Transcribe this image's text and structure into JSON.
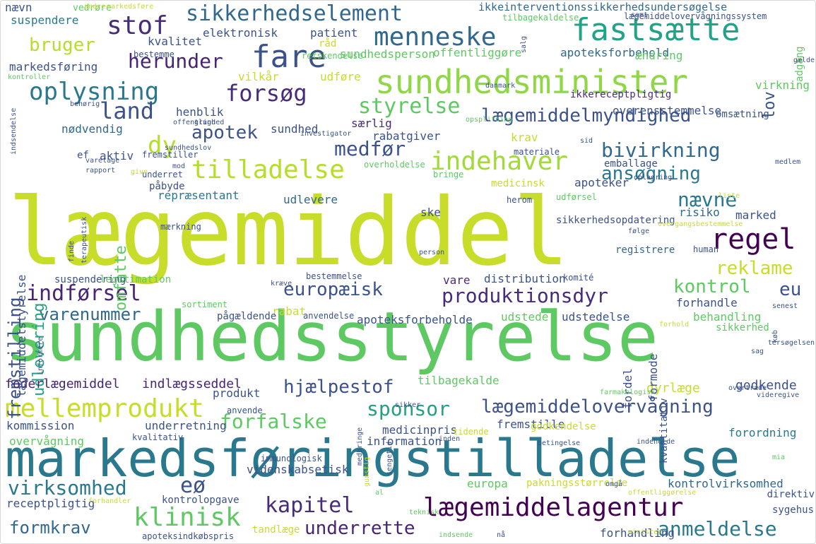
{
  "palette": {
    "yellow": "#c8dc2a",
    "lime": "#8fd744",
    "green": "#5ec962",
    "teal": "#25a085",
    "cyan": "#1f9a8a",
    "blue": "#2a788e",
    "indigo": "#31688e",
    "slate": "#3b528b",
    "violet": "#472c7a",
    "purple": "#440154"
  },
  "words": [
    {
      "text": "lægemiddel",
      "color": "#c8dc2a"
    },
    {
      "text": "sundhedsstyrelse",
      "color": "#5ec962"
    },
    {
      "text": "markedsføringstilladelse",
      "color": "#2a788e"
    },
    {
      "text": "sundhedsminister",
      "color": "#8fd744"
    },
    {
      "text": "fastsætte",
      "color": "#20a386"
    },
    {
      "text": "fare",
      "color": "#3b528b"
    },
    {
      "text": "menneske",
      "color": "#31688e"
    },
    {
      "text": "sikkerhedselement",
      "color": "#31688e"
    },
    {
      "text": "stof",
      "color": "#472c7a"
    },
    {
      "text": "oplysning",
      "color": "#2a788e"
    },
    {
      "text": "forsøg",
      "color": "#472c7a"
    },
    {
      "text": "tilladelse",
      "color": "#b5de2b"
    },
    {
      "text": "indehaver",
      "color": "#a2da37"
    },
    {
      "text": "lægemiddelmyndighed",
      "color": "#3b528b"
    },
    {
      "text": "styrelse",
      "color": "#5ec962"
    },
    {
      "text": "apotek",
      "color": "#3b528b"
    },
    {
      "text": "land",
      "color": "#3b528b"
    },
    {
      "text": "herunder",
      "color": "#482475"
    },
    {
      "text": "bruger",
      "color": "#b5de2b"
    },
    {
      "text": "medfør",
      "color": "#3b528b"
    },
    {
      "text": "bivirkning",
      "color": "#31688e"
    },
    {
      "text": "ansøgning",
      "color": "#2a788e"
    },
    {
      "text": "dy",
      "color": "#b5de2b"
    },
    {
      "text": "regel",
      "color": "#440154"
    },
    {
      "text": "nævne",
      "color": "#2a788e"
    },
    {
      "text": "reklame",
      "color": "#c8dc2a"
    },
    {
      "text": "kontrol",
      "color": "#5ec962"
    },
    {
      "text": "eu",
      "color": "#3b528b"
    },
    {
      "text": "europæisk",
      "color": "#3b528b"
    },
    {
      "text": "produktionsdyr",
      "color": "#472c7a"
    },
    {
      "text": "indførsel",
      "color": "#482475"
    },
    {
      "text": "varenummer",
      "color": "#31688e"
    },
    {
      "text": "mellemprodukt",
      "color": "#c8dc2a"
    },
    {
      "text": "lægemiddelovervågning",
      "color": "#3b528b"
    },
    {
      "text": "sponsor",
      "color": "#25a085"
    },
    {
      "text": "forfalske",
      "color": "#5ec962"
    },
    {
      "text": "hjælpestof",
      "color": "#3b528b"
    },
    {
      "text": "virksomhed",
      "color": "#2a788e"
    },
    {
      "text": "eø",
      "color": "#3b528b"
    },
    {
      "text": "kapitel",
      "color": "#472c7a"
    },
    {
      "text": "lægemiddelagentur",
      "color": "#440154"
    },
    {
      "text": "klinisk",
      "color": "#5ec962"
    },
    {
      "text": "formkrav",
      "color": "#31688e"
    },
    {
      "text": "underrette",
      "color": "#482475"
    },
    {
      "text": "anmeldelse",
      "color": "#2a788e"
    },
    {
      "text": "fremstilling",
      "color": "#3b528b"
    },
    {
      "text": "udlevering",
      "color": "#25a085"
    },
    {
      "text": "omfatte",
      "color": "#5ec962"
    },
    {
      "text": "lov",
      "color": "#3b528b"
    },
    {
      "text": "elektronisk",
      "color": "#3b528b"
    },
    {
      "text": "kvalitet",
      "color": "#3b528b"
    },
    {
      "text": "patient",
      "color": "#3b528b"
    },
    {
      "text": "suspendere",
      "color": "#2a788e"
    },
    {
      "text": "markedsføring",
      "color": "#3b528b"
    },
    {
      "text": "sundhedsperson",
      "color": "#5ec962"
    },
    {
      "text": "offentliggøre",
      "color": "#5ec962"
    },
    {
      "text": "apoteksforbehold",
      "color": "#31688e"
    },
    {
      "text": "ændring",
      "color": "#5ec962"
    },
    {
      "text": "ikkeinterventionssikkerhedsundersøgelse",
      "color": "#31688e"
    },
    {
      "text": "tilbagekaldelse",
      "color": "#5ec962"
    },
    {
      "text": "vilkår",
      "color": "#c8dc2a"
    },
    {
      "text": "udføre",
      "color": "#c8dc2a"
    },
    {
      "text": "ikkereceptpligtig",
      "color": "#472c7a"
    },
    {
      "text": "overensstemmelse",
      "color": "#3b528b"
    },
    {
      "text": "omsætning",
      "color": "#3b528b"
    },
    {
      "text": "virkning",
      "color": "#5ec962"
    },
    {
      "text": "henblik",
      "color": "#3b528b"
    },
    {
      "text": "nødvendig",
      "color": "#31688e"
    },
    {
      "text": "sundhed",
      "color": "#3b528b"
    },
    {
      "text": "særlig",
      "color": "#472c7a"
    },
    {
      "text": "rabatgiver",
      "color": "#3b528b"
    },
    {
      "text": "krav",
      "color": "#c8dc2a"
    },
    {
      "text": "aktiv",
      "color": "#3b528b"
    },
    {
      "text": "fremstiller",
      "color": "#3b528b"
    },
    {
      "text": "emballage",
      "color": "#3b528b"
    },
    {
      "text": "apoteker",
      "color": "#3b528b"
    },
    {
      "text": "repræsentant",
      "color": "#2a788e"
    },
    {
      "text": "udlevere",
      "color": "#31688e"
    },
    {
      "text": "risiko",
      "color": "#31688e"
    },
    {
      "text": "marked",
      "color": "#3b528b"
    },
    {
      "text": "ske",
      "color": "#3b528b"
    },
    {
      "text": "registrere",
      "color": "#31688e"
    },
    {
      "text": "distribution",
      "color": "#3b528b"
    },
    {
      "text": "vare",
      "color": "#472c7a"
    },
    {
      "text": "rabat",
      "color": "#c8dc2a"
    },
    {
      "text": "apoteksforbeholde",
      "color": "#3b528b"
    },
    {
      "text": "udstede",
      "color": "#5ec962"
    },
    {
      "text": "udstedelse",
      "color": "#3b528b"
    },
    {
      "text": "forhandle",
      "color": "#3b528b"
    },
    {
      "text": "behandling",
      "color": "#5ec962"
    },
    {
      "text": "sikkerhed",
      "color": "#5ec962"
    },
    {
      "text": "foderlægemiddel",
      "color": "#482475"
    },
    {
      "text": "indlægsseddel",
      "color": "#482475"
    },
    {
      "text": "produkt",
      "color": "#3b528b"
    },
    {
      "text": "tilbagekalde",
      "color": "#5ec962"
    },
    {
      "text": "dyrlæge",
      "color": "#c8dc2a"
    },
    {
      "text": "godkende",
      "color": "#3b528b"
    },
    {
      "text": "kommission",
      "color": "#3b528b"
    },
    {
      "text": "underretning",
      "color": "#3b528b"
    },
    {
      "text": "medicinpris",
      "color": "#3b528b"
    },
    {
      "text": "fremstille",
      "color": "#3b528b"
    },
    {
      "text": "forordning",
      "color": "#2a788e"
    },
    {
      "text": "overvågning",
      "color": "#5ec962"
    },
    {
      "text": "kvalitativ",
      "color": "#3b528b"
    },
    {
      "text": "information",
      "color": "#3b528b"
    },
    {
      "text": "videnskabsetisk",
      "color": "#3b528b"
    },
    {
      "text": "europa",
      "color": "#5ec962"
    },
    {
      "text": "pakningsstørrelse",
      "color": "#c8dc2a"
    },
    {
      "text": "kontrolvirksomhed",
      "color": "#31688e"
    },
    {
      "text": "receptpligtig",
      "color": "#3b528b"
    },
    {
      "text": "kontrolopgave",
      "color": "#3b528b"
    },
    {
      "text": "direktiv",
      "color": "#3b528b"
    },
    {
      "text": "sygehus",
      "color": "#3b528b"
    },
    {
      "text": "forhandling",
      "color": "#3b528b"
    },
    {
      "text": "apoteksindkøbspris",
      "color": "#3b528b"
    },
    {
      "text": "tandlæge",
      "color": "#c8dc2a"
    },
    {
      "text": "lægemiddelstyrelse",
      "color": "#3b528b"
    },
    {
      "text": "formode",
      "color": "#3b528b"
    },
    {
      "text": "fordel",
      "color": "#3b528b"
    },
    {
      "text": "kvantitativ",
      "color": "#3b528b"
    },
    {
      "text": "adgang",
      "color": "#5ec962"
    },
    {
      "text": "nævn",
      "color": "#3b528b"
    },
    {
      "text": "vedrøre",
      "color": "#5ec962"
    },
    {
      "text": "råd",
      "color": "#c8dc2a"
    },
    {
      "text": "retskendelse",
      "color": "#5ec962"
    },
    {
      "text": "bestemme",
      "color": "#3b528b"
    },
    {
      "text": "ef",
      "color": "#3b528b"
    },
    {
      "text": "underret",
      "color": "#3b528b"
    },
    {
      "text": "påbyde",
      "color": "#3b528b"
    },
    {
      "text": "medicinsk",
      "color": "#c8dc2a"
    },
    {
      "text": "materiale",
      "color": "#3b528b"
    },
    {
      "text": "overholdelse",
      "color": "#5ec962"
    },
    {
      "text": "bringe",
      "color": "#5ec962"
    },
    {
      "text": "herom",
      "color": "#3b528b"
    },
    {
      "text": "udførsel",
      "color": "#5ec962"
    },
    {
      "text": "sikkerhedsopdatering",
      "color": "#3b528b"
    },
    {
      "text": "mærkning",
      "color": "#3b528b"
    },
    {
      "text": "suspendering",
      "color": "#3b528b"
    },
    {
      "text": "legitimation",
      "color": "#5ec962"
    },
    {
      "text": "bestemmelse",
      "color": "#3b528b"
    },
    {
      "text": "komité",
      "color": "#3b528b"
    },
    {
      "text": "human",
      "color": "#3b528b"
    },
    {
      "text": "sortiment",
      "color": "#5ec962"
    },
    {
      "text": "pågældende",
      "color": "#3b528b"
    },
    {
      "text": "anvendelse",
      "color": "#3b528b"
    },
    {
      "text": "anvende",
      "color": "#3b528b"
    },
    {
      "text": "immunologisk",
      "color": "#3b528b"
    },
    {
      "text": "godkendelse",
      "color": "#c8dc2a"
    },
    {
      "text": "tidende",
      "color": "#c8dc2a"
    },
    {
      "text": "lægemiddelovervågningssystem",
      "color": "#3b528b"
    },
    {
      "text": "markedsføre",
      "color": "#c8dc2a"
    },
    {
      "text": "andre",
      "color": "#c8dc2a"
    },
    {
      "text": "kontroller",
      "color": "#5ec962"
    },
    {
      "text": "behørig",
      "color": "#3b528b"
    },
    {
      "text": "indsendelse",
      "color": "#3b528b"
    },
    {
      "text": "offentlighed",
      "color": "#3b528b"
    },
    {
      "text": "grund",
      "color": "#3b528b"
    },
    {
      "text": "opsplitning",
      "color": "#5ec962"
    },
    {
      "text": "investigator",
      "color": "#3b528b"
    },
    {
      "text": "varetage",
      "color": "#3b528b"
    },
    {
      "text": "sundhedslov",
      "color": "#3b528b"
    },
    {
      "text": "rapport",
      "color": "#3b528b"
    },
    {
      "text": "give",
      "color": "#c8dc2a"
    },
    {
      "text": "mod",
      "color": "#3b528b"
    },
    {
      "text": "oplagring",
      "color": "#3b528b"
    },
    {
      "text": "liste",
      "color": "#c8dc2a"
    },
    {
      "text": "følge",
      "color": "#3b528b"
    },
    {
      "text": "overgangsbestemmelse",
      "color": "#c8dc2a"
    },
    {
      "text": "person",
      "color": "#3b528b"
    },
    {
      "text": "kræve",
      "color": "#3b528b"
    },
    {
      "text": "danmark",
      "color": "#3b528b"
    },
    {
      "text": "salg",
      "color": "#3b528b"
    },
    {
      "text": "samt",
      "color": "#3b528b"
    },
    {
      "text": "gælde",
      "color": "#3b528b"
    },
    {
      "text": "sid",
      "color": "#3b528b"
    },
    {
      "text": "medlem",
      "color": "#3b528b"
    },
    {
      "text": "forhold",
      "color": "#c8dc2a"
    },
    {
      "text": "senest",
      "color": "#3b528b"
    },
    {
      "text": "sag",
      "color": "#3b528b"
    },
    {
      "text": "videregive",
      "color": "#3b528b"
    },
    {
      "text": "farmakologisk",
      "color": "#5ec962"
    },
    {
      "text": "informere",
      "color": "#3b528b"
    },
    {
      "text": "forhandler",
      "color": "#c8dc2a"
    },
    {
      "text": "al",
      "color": "#5ec962"
    },
    {
      "text": "teknisk",
      "color": "#5ec962"
    },
    {
      "text": "offentliggørelse",
      "color": "#c8dc2a"
    },
    {
      "text": "minister",
      "color": "#c8dc2a"
    },
    {
      "text": "nå",
      "color": "#3b528b"
    },
    {
      "text": "indsende",
      "color": "#5ec962"
    },
    {
      "text": "betingelse",
      "color": "#3b528b"
    },
    {
      "text": "indeholde",
      "color": "#3b528b"
    },
    {
      "text": "inden",
      "color": "#3b528b"
    },
    {
      "text": "overtræde",
      "color": "#3b528b"
    },
    {
      "text": "sikker",
      "color": "#3b528b"
    },
    {
      "text": "medbringe",
      "color": "#3b528b"
    },
    {
      "text": "gunstig",
      "color": "#c8dc2a"
    },
    {
      "text": "sengetid",
      "color": "#3b528b"
    },
    {
      "text": "tersøgelsen",
      "color": "#3b528b"
    },
    {
      "text": "omgå",
      "color": "#3b528b"
    },
    {
      "text": "terapeutisk",
      "color": "#3b528b"
    },
    {
      "text": "finde",
      "color": "#3b528b"
    },
    {
      "text": "køb",
      "color": "#3b528b"
    },
    {
      "text": "mia",
      "color": "#5ec962"
    }
  ]
}
